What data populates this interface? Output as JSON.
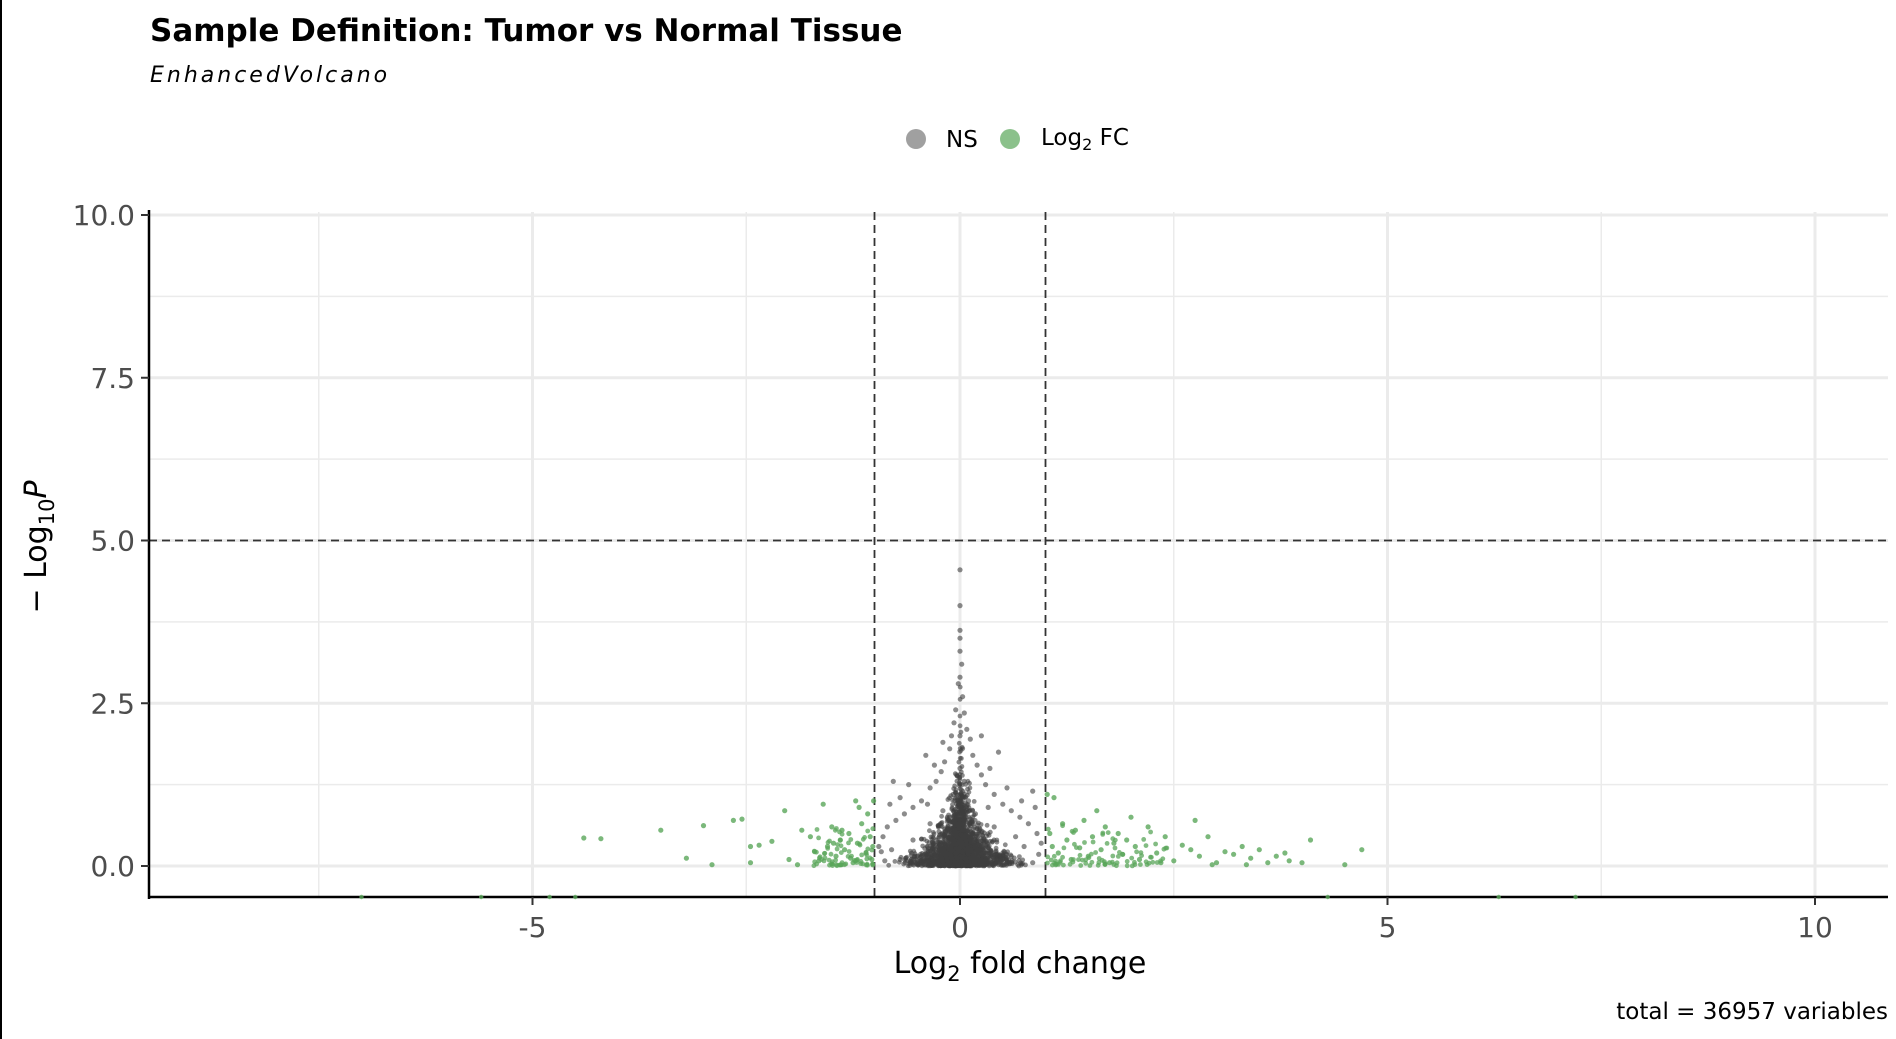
{
  "chart_data": {
    "type": "scatter",
    "title": "Sample Definition: Tumor vs Normal Tissue",
    "subtitle": "EnhancedVolcano",
    "xlabel": {
      "main": "Log",
      "sub": "2",
      "rest": " fold change"
    },
    "ylabel": {
      "prefix": "− Log",
      "sub": "10",
      "italic": "P"
    },
    "caption": "total = 36957 variables",
    "xlim": [
      -9,
      10.6
    ],
    "ylim": [
      -0.45,
      10.0
    ],
    "x_ticks": [
      -5,
      0,
      5,
      10
    ],
    "x_tick_labels": [
      "-5",
      "0",
      "5",
      "10"
    ],
    "y_ticks": [
      0,
      2.5,
      5,
      7.5,
      10
    ],
    "y_tick_labels": [
      "0.0",
      "2.5",
      "5.0",
      "7.5",
      "10.0"
    ],
    "grid": true,
    "fc_cutoff": 1,
    "p_cutoff_log10": 5,
    "legend": {
      "position": "top",
      "items": [
        {
          "key": "NS",
          "label": "NS",
          "color": "#808080"
        },
        {
          "key": "FC",
          "label_main": "Log",
          "label_sub": "2",
          "label_rest": " FC",
          "color": "#5aa65a"
        }
      ]
    },
    "series": [
      {
        "name": "NS",
        "color": "#404040",
        "points": [
          [
            0.0,
            4.55
          ],
          [
            0.0,
            4.0
          ],
          [
            0.0,
            3.62
          ],
          [
            0.0,
            3.5
          ],
          [
            0.0,
            3.3
          ],
          [
            0.02,
            3.1
          ],
          [
            0.0,
            2.9
          ],
          [
            -0.02,
            2.8
          ],
          [
            0.03,
            2.6
          ],
          [
            -0.05,
            2.4
          ],
          [
            0.05,
            2.35
          ],
          [
            -0.07,
            2.2
          ],
          [
            0.08,
            2.1
          ],
          [
            -0.1,
            2.0
          ],
          [
            0.12,
            1.95
          ],
          [
            -0.12,
            1.8
          ],
          [
            0.15,
            1.7
          ],
          [
            -0.18,
            1.6
          ],
          [
            0.2,
            1.55
          ],
          [
            -0.22,
            1.45
          ],
          [
            0.25,
            1.4
          ],
          [
            -0.28,
            1.3
          ],
          [
            0.3,
            1.25
          ],
          [
            -0.35,
            1.2
          ],
          [
            0.4,
            1.1
          ],
          [
            -0.45,
            1.0
          ],
          [
            0.5,
            0.95
          ],
          [
            -0.55,
            0.9
          ],
          [
            0.6,
            0.85
          ],
          [
            -0.65,
            0.8
          ],
          [
            0.7,
            0.75
          ],
          [
            -0.75,
            0.7
          ],
          [
            0.8,
            0.65
          ],
          [
            -0.85,
            0.6
          ],
          [
            0.9,
            0.5
          ],
          [
            -0.9,
            0.45
          ],
          [
            0.95,
            0.35
          ],
          [
            -0.95,
            0.3
          ],
          [
            0.55,
            1.2
          ],
          [
            -0.6,
            1.25
          ],
          [
            0.85,
            1.15
          ],
          [
            -0.7,
            1.05
          ],
          [
            0.35,
            1.5
          ],
          [
            -0.3,
            1.55
          ],
          [
            0.45,
            1.75
          ],
          [
            -0.4,
            1.7
          ],
          [
            0.25,
            2.0
          ],
          [
            -0.2,
            1.9
          ],
          [
            0.65,
            0.45
          ],
          [
            -0.55,
            0.4
          ],
          [
            0.75,
            0.3
          ],
          [
            -0.8,
            0.25
          ],
          [
            0.5,
            0.2
          ],
          [
            -0.45,
            0.15
          ],
          [
            0.3,
            0.1
          ],
          [
            -0.25,
            0.05
          ],
          [
            0.15,
            0.5
          ],
          [
            -0.15,
            0.55
          ],
          [
            0.4,
            0.6
          ],
          [
            -0.35,
            0.65
          ],
          [
            0.6,
            0.15
          ],
          [
            -0.7,
            0.1
          ],
          [
            0.85,
            0.05
          ],
          [
            -0.88,
            0.08
          ],
          [
            0.92,
            0.18
          ],
          [
            -0.92,
            0.22
          ],
          [
            0.1,
            1.0
          ],
          [
            -0.08,
            1.1
          ],
          [
            0.05,
            1.3
          ],
          [
            -0.04,
            1.4
          ],
          [
            0.18,
            0.8
          ],
          [
            -0.2,
            0.85
          ],
          [
            0.33,
            0.9
          ],
          [
            -0.38,
            0.95
          ],
          [
            0.72,
            1.0
          ],
          [
            -0.78,
            1.3
          ],
          [
            0.88,
            0.9
          ],
          [
            -0.82,
            0.95
          ],
          [
            0.0,
            2.0
          ],
          [
            0.0,
            1.5
          ],
          [
            0.0,
            1.0
          ],
          [
            0.0,
            0.5
          ],
          [
            0.0,
            0.1
          ],
          [
            0.1,
            0.3
          ],
          [
            -0.1,
            0.25
          ]
        ]
      },
      {
        "name": "FC",
        "color": "#5aa65a",
        "points": [
          [
            -4.4,
            0.43
          ],
          [
            -4.2,
            0.42
          ],
          [
            -3.5,
            0.55
          ],
          [
            -3.2,
            0.12
          ],
          [
            -3.0,
            0.62
          ],
          [
            -2.9,
            0.02
          ],
          [
            -2.65,
            0.7
          ],
          [
            -2.55,
            0.72
          ],
          [
            -2.45,
            0.3
          ],
          [
            -2.45,
            0.05
          ],
          [
            -2.35,
            0.32
          ],
          [
            -2.2,
            0.38
          ],
          [
            -2.05,
            0.85
          ],
          [
            -2.0,
            0.1
          ],
          [
            -1.9,
            0.02
          ],
          [
            -1.85,
            0.55
          ],
          [
            -1.75,
            0.45
          ],
          [
            -1.7,
            0.22
          ],
          [
            -1.65,
            0.08
          ],
          [
            -1.6,
            0.95
          ],
          [
            -1.55,
            0.3
          ],
          [
            -1.5,
            0.6
          ],
          [
            -1.45,
            0.15
          ],
          [
            -1.4,
            0.4
          ],
          [
            -1.35,
            0.25
          ],
          [
            -1.3,
            0.5
          ],
          [
            -1.25,
            0.05
          ],
          [
            -1.22,
            1.0
          ],
          [
            -1.2,
            0.35
          ],
          [
            -1.15,
            0.65
          ],
          [
            -1.1,
            0.2
          ],
          [
            -1.08,
            0.8
          ],
          [
            -1.05,
            0.45
          ],
          [
            -1.02,
            0.3
          ],
          [
            -1.01,
            1.0
          ],
          [
            -1.03,
            0.1
          ],
          [
            -1.18,
            0.9
          ],
          [
            -1.28,
            0.12
          ],
          [
            -1.38,
            0.55
          ],
          [
            -1.48,
            0.35
          ],
          [
            1.02,
            1.1
          ],
          [
            1.05,
            0.5
          ],
          [
            1.08,
            0.3
          ],
          [
            1.1,
            1.05
          ],
          [
            1.15,
            0.2
          ],
          [
            1.2,
            0.65
          ],
          [
            1.25,
            0.4
          ],
          [
            1.3,
            0.1
          ],
          [
            1.35,
            0.55
          ],
          [
            1.4,
            0.28
          ],
          [
            1.45,
            0.7
          ],
          [
            1.5,
            0.15
          ],
          [
            1.55,
            0.45
          ],
          [
            1.6,
            0.85
          ],
          [
            1.65,
            0.25
          ],
          [
            1.7,
            0.6
          ],
          [
            1.75,
            0.05
          ],
          [
            1.8,
            0.35
          ],
          [
            1.85,
            0.5
          ],
          [
            1.9,
            0.18
          ],
          [
            1.95,
            0.4
          ],
          [
            2.0,
            0.75
          ],
          [
            2.05,
            0.3
          ],
          [
            2.1,
            0.1
          ],
          [
            2.2,
            0.6
          ],
          [
            2.3,
            0.2
          ],
          [
            2.4,
            0.45
          ],
          [
            2.5,
            0.08
          ],
          [
            2.6,
            0.32
          ],
          [
            2.7,
            0.25
          ],
          [
            2.75,
            0.7
          ],
          [
            2.8,
            0.15
          ],
          [
            2.9,
            0.45
          ],
          [
            3.0,
            0.05
          ],
          [
            3.1,
            0.22
          ],
          [
            3.2,
            0.18
          ],
          [
            3.3,
            0.3
          ],
          [
            3.4,
            0.12
          ],
          [
            3.5,
            0.25
          ],
          [
            3.6,
            0.05
          ],
          [
            3.7,
            0.15
          ],
          [
            3.8,
            0.2
          ],
          [
            4.0,
            0.05
          ],
          [
            4.1,
            0.4
          ],
          [
            4.5,
            0.02
          ],
          [
            4.7,
            0.25
          ],
          [
            3.35,
            0.02
          ],
          [
            3.85,
            0.08
          ],
          [
            2.95,
            0.02
          ],
          [
            2.35,
            0.05
          ],
          [
            1.12,
            0.02
          ]
        ]
      }
    ],
    "axis_points": [
      -7.0,
      -5.6,
      -4.8,
      -4.5,
      4.3,
      6.3,
      7.2
    ]
  }
}
